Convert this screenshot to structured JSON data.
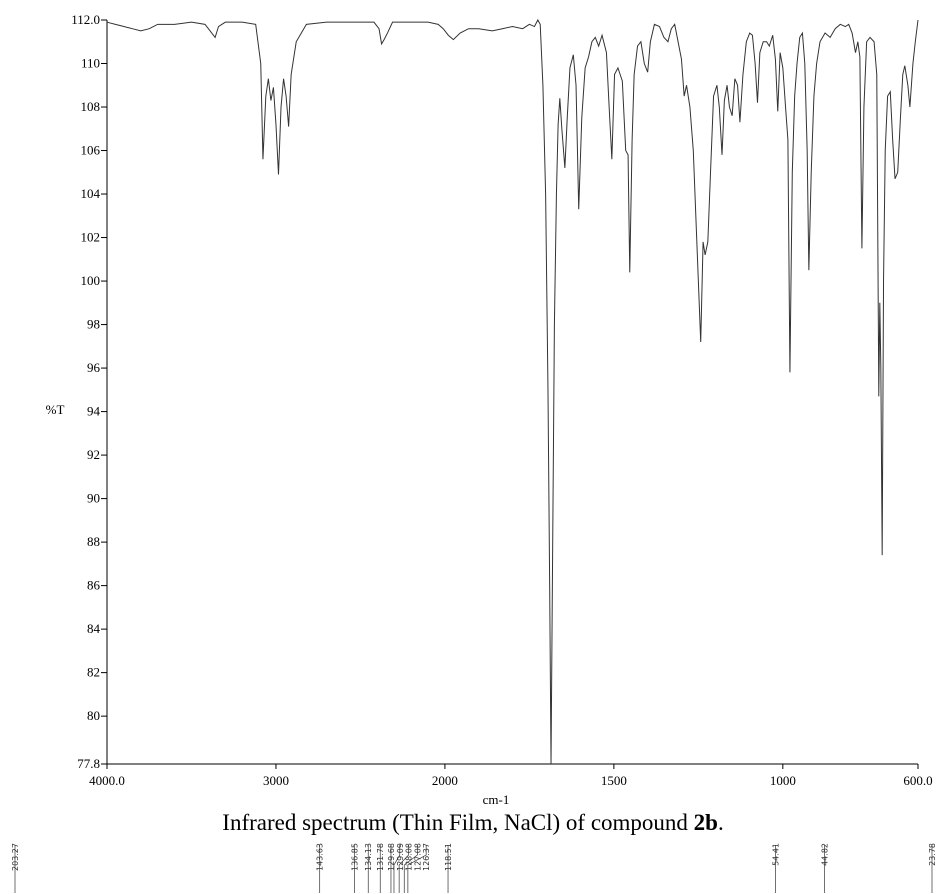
{
  "chart_data": {
    "type": "line",
    "color": "#333333",
    "x_label": "cm-1",
    "y_label": "%T",
    "xscale_break": 2000,
    "xlim": [
      4000,
      600
    ],
    "ylim": [
      77.8,
      112.0
    ],
    "xticks": [
      {
        "value": 4000,
        "label": "4000.0"
      },
      3000,
      2000,
      1500,
      1000,
      {
        "value": 600,
        "label": "600.0"
      }
    ],
    "yticks": [
      {
        "value": 112,
        "label": "112.0"
      },
      110,
      108,
      106,
      104,
      102,
      100,
      98,
      96,
      94,
      92,
      90,
      88,
      86,
      84,
      82,
      80,
      {
        "value": 77.8,
        "label": "77.8"
      }
    ],
    "x": [
      4000,
      3950,
      3900,
      3850,
      3800,
      3750,
      3700,
      3600,
      3500,
      3420,
      3380,
      3360,
      3340,
      3300,
      3200,
      3120,
      3090,
      3077,
      3060,
      3045,
      3030,
      3015,
      3000,
      2985,
      2970,
      2955,
      2940,
      2925,
      2910,
      2880,
      2820,
      2700,
      2550,
      2420,
      2390,
      2375,
      2360,
      2340,
      2310,
      2200,
      2100,
      2040,
      2010,
      1990,
      1975,
      1955,
      1930,
      1900,
      1860,
      1830,
      1800,
      1770,
      1750,
      1735,
      1725,
      1718,
      1710,
      1702,
      1695,
      1690,
      1686,
      1682,
      1676,
      1670,
      1665,
      1660,
      1654,
      1645,
      1638,
      1630,
      1620,
      1612,
      1604,
      1595,
      1585,
      1575,
      1565,
      1555,
      1545,
      1535,
      1522,
      1514,
      1506,
      1498,
      1488,
      1475,
      1465,
      1458,
      1453,
      1446,
      1440,
      1430,
      1420,
      1410,
      1400,
      1392,
      1380,
      1365,
      1352,
      1340,
      1330,
      1320,
      1310,
      1300,
      1292,
      1285,
      1275,
      1265,
      1255,
      1243,
      1236,
      1230,
      1222,
      1214,
      1205,
      1195,
      1188,
      1180,
      1173,
      1165,
      1158,
      1150,
      1142,
      1134,
      1127,
      1118,
      1108,
      1098,
      1090,
      1082,
      1075,
      1068,
      1058,
      1048,
      1040,
      1030,
      1022,
      1015,
      1008,
      1000,
      992,
      985,
      979,
      972,
      965,
      958,
      950,
      942,
      935,
      928,
      923,
      916,
      908,
      900,
      890,
      875,
      860,
      845,
      830,
      815,
      805,
      795,
      785,
      778,
      772,
      766,
      760,
      752,
      742,
      730,
      722,
      716,
      713,
      710,
      706,
      702,
      697,
      690,
      682,
      675,
      668,
      660,
      652,
      645,
      639,
      630,
      624,
      615,
      608,
      600
    ],
    "values": [
      111.9,
      111.8,
      111.7,
      111.6,
      111.5,
      111.6,
      111.8,
      111.8,
      111.9,
      111.8,
      111.4,
      111.2,
      111.7,
      111.9,
      111.9,
      111.8,
      110,
      105.6,
      108.5,
      109.3,
      108.3,
      108.9,
      107.2,
      104.9,
      108,
      109.3,
      108.5,
      107.1,
      109.5,
      111,
      111.8,
      111.9,
      111.9,
      111.9,
      111.6,
      110.9,
      111.1,
      111.4,
      111.9,
      111.9,
      111.9,
      111.8,
      111.6,
      111.3,
      111.1,
      111.4,
      111.6,
      111.6,
      111.5,
      111.6,
      111.7,
      111.6,
      111.8,
      111.7,
      112.0,
      111.8,
      109,
      104,
      95,
      86,
      77.8,
      86,
      98,
      104,
      107.2,
      108.4,
      107,
      105.2,
      107.5,
      109.8,
      110.4,
      109,
      103.3,
      107.5,
      109.8,
      110.3,
      111,
      111.2,
      110.8,
      111.3,
      110.5,
      108,
      105.6,
      109.5,
      109.8,
      109.2,
      106,
      105.8,
      100.4,
      106.5,
      109.5,
      110.8,
      111,
      110,
      109.6,
      111,
      111.8,
      111.7,
      111.2,
      111,
      111.6,
      111.8,
      111,
      110.2,
      108.5,
      109,
      108,
      106,
      102,
      97.2,
      101.8,
      101.2,
      101.8,
      105,
      108.5,
      109,
      108,
      105.8,
      108.3,
      109,
      108,
      107.6,
      109.3,
      109,
      107.3,
      109.5,
      111,
      111.4,
      111.3,
      110,
      108.2,
      110.5,
      111,
      111,
      110.8,
      111.3,
      110.2,
      107.8,
      110.5,
      109.8,
      108,
      106.5,
      95.8,
      105,
      108.5,
      110,
      111.2,
      111.4,
      110,
      106,
      100.5,
      105,
      108.5,
      110,
      111,
      111.4,
      111.2,
      111.6,
      111.8,
      111.7,
      111.8,
      111.4,
      110.5,
      111,
      110.3,
      101.5,
      108,
      111,
      111.2,
      111,
      109.5,
      94.7,
      99,
      96,
      87.4,
      100,
      106,
      108.5,
      108.7,
      106.5,
      104.7,
      105,
      107.5,
      109.5,
      109.9,
      109,
      108,
      110,
      111,
      112
    ],
    "caption": {
      "text": "Infrared spectrum (Thin Film, NaCl) of compound ",
      "compound": "2b",
      "end": "."
    },
    "nmr_peaks": [
      "203.27",
      "143.63",
      "136.85",
      "134.13",
      "131.78",
      "129.68",
      "129.09",
      "128.08",
      "127.08",
      "126.37",
      "118.51",
      "54.41",
      "44.82",
      "23.78"
    ]
  }
}
